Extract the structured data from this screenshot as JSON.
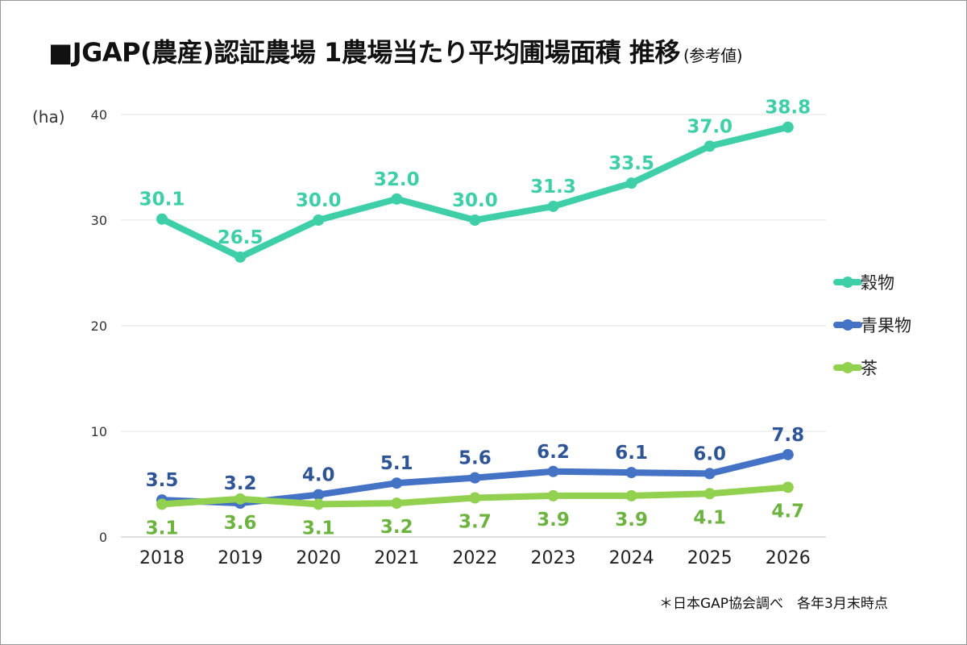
{
  "title": "■JGAP(農産)認証農場 1農場当たり平均圃場面積 推移",
  "title_suffix": "(参考値)",
  "unit_label": "(ha)",
  "footnote": "＊日本GAP協会調べ　各年3月末時点",
  "chart_data": {
    "type": "line",
    "title": "■JGAP(農産)認証農場 1農場当たり平均圃場面積 推移",
    "ylabel": "(ha)",
    "ylim": [
      0,
      40
    ],
    "yticks": [
      0,
      10,
      20,
      30,
      40
    ],
    "grid": true,
    "legend_position": "right",
    "x": [
      "2018",
      "2019",
      "2020",
      "2021",
      "2022",
      "2023",
      "2024",
      "2025",
      "2026"
    ],
    "series": [
      {
        "name": "穀物",
        "color": "#3ecfa8",
        "label_color": "#3ecfa8",
        "label_position": "above",
        "values": [
          30.1,
          26.5,
          30.0,
          32.0,
          30.0,
          31.3,
          33.5,
          37.0,
          38.8
        ],
        "labels": [
          "30.1",
          "26.5",
          "30.0",
          "32.0",
          "30.0",
          "31.3",
          "33.5",
          "37.0",
          "38.8"
        ]
      },
      {
        "name": "青果物",
        "color": "#4472c4",
        "label_color": "#2f5597",
        "label_position": "above",
        "values": [
          3.5,
          3.2,
          4.0,
          5.1,
          5.6,
          6.2,
          6.1,
          6.0,
          7.8
        ],
        "labels": [
          "3.5",
          "3.2",
          "4.0",
          "5.1",
          "5.6",
          "6.2",
          "6.1",
          "6.0",
          "7.8"
        ]
      },
      {
        "name": "茶",
        "color": "#92d050",
        "label_color": "#6db33f",
        "label_position": "below",
        "values": [
          3.1,
          3.6,
          3.1,
          3.2,
          3.7,
          3.9,
          3.9,
          4.1,
          4.7
        ],
        "labels": [
          "3.1",
          "3.6",
          "3.1",
          "3.2",
          "3.7",
          "3.9",
          "3.9",
          "4.1",
          "4.7"
        ]
      }
    ]
  }
}
